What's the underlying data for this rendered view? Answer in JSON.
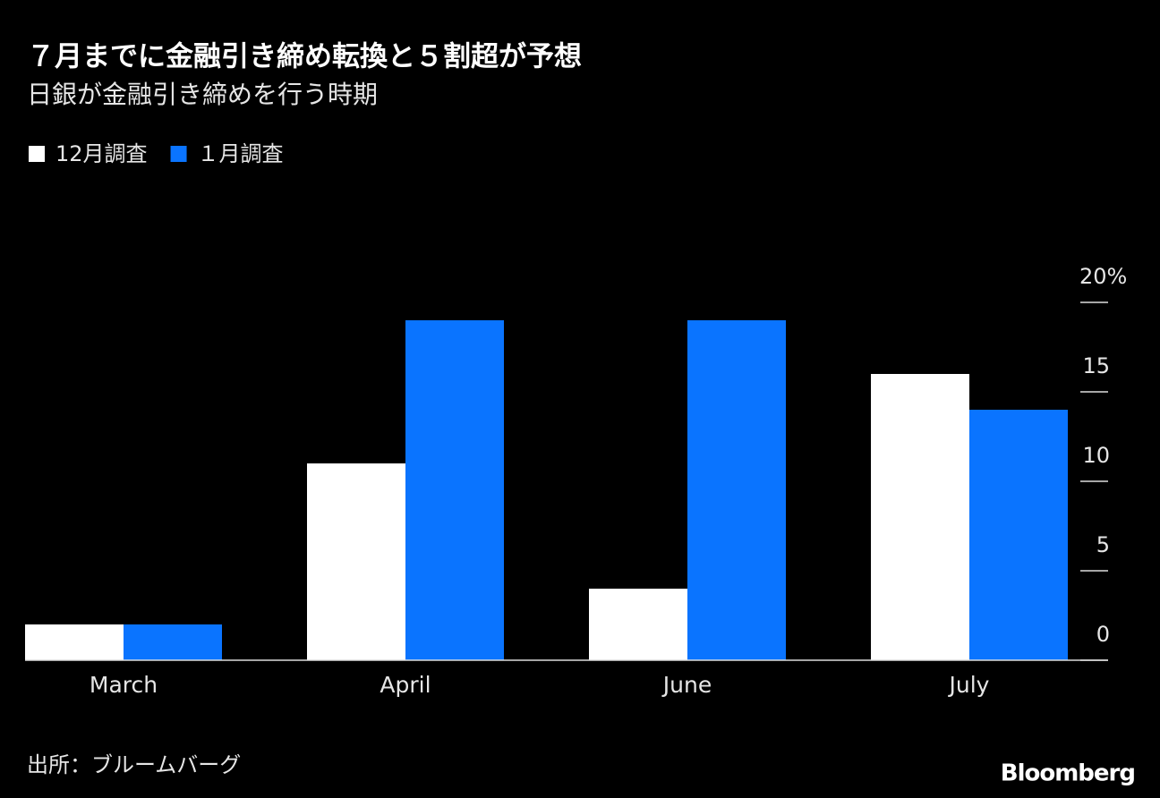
{
  "chart_data": {
    "type": "bar",
    "title": "７月までに金融引き締め転換と５割超が予想",
    "subtitle": "日銀が金融引き締めを行う時期",
    "categories": [
      "March",
      "April",
      "June",
      "July"
    ],
    "series": [
      {
        "name": "12月調査",
        "color": "#ffffff",
        "values": [
          2,
          11,
          4,
          16
        ]
      },
      {
        "name": "１月調査",
        "color": "#0a74ff",
        "values": [
          2,
          19,
          19,
          14
        ]
      }
    ],
    "ylim": [
      0,
      20
    ],
    "yticks": [
      0,
      5,
      10,
      15,
      {
        "value": 20,
        "label": "20%"
      }
    ],
    "legend": "top-left",
    "source": "出所：ブルームバーグ",
    "logo": "Bloomberg"
  }
}
